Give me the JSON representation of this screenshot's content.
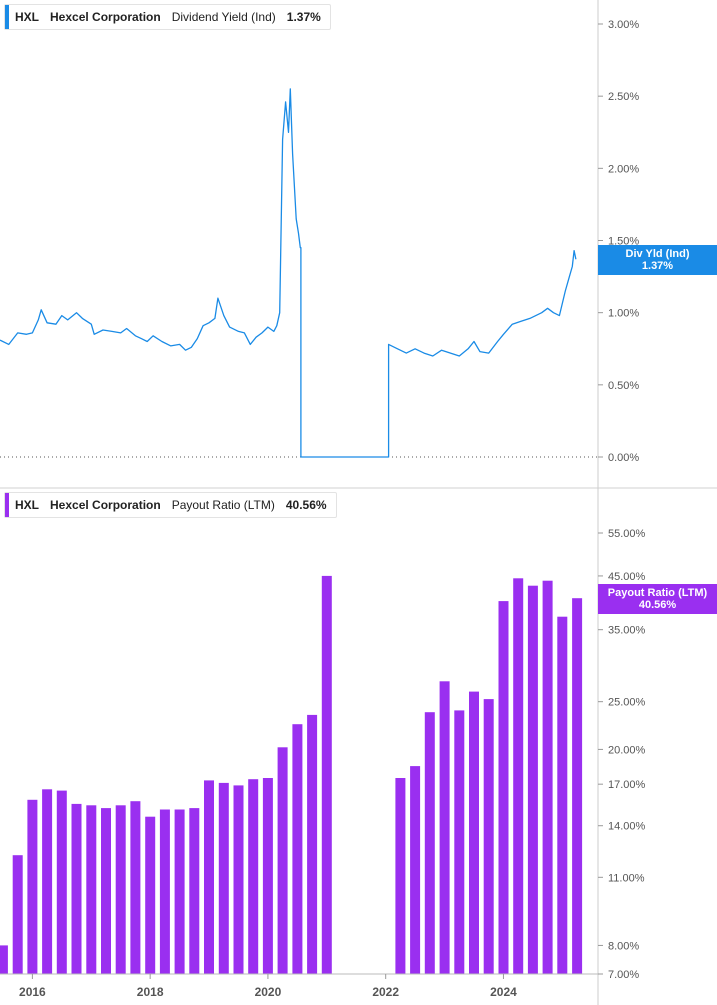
{
  "top_legend": {
    "ticker": "HXL",
    "company": "Hexcel Corporation",
    "metric": "Dividend Yield (Ind)",
    "value": "1.37%"
  },
  "bottom_legend": {
    "ticker": "HXL",
    "company": "Hexcel Corporation",
    "metric": "Payout Ratio (LTM)",
    "value": "40.56%"
  },
  "top_tag": {
    "line1": "Div Yld (Ind)",
    "line2": "1.37%"
  },
  "bottom_tag": {
    "line1": "Payout Ratio (LTM)",
    "line2": "40.56%"
  },
  "colors": {
    "yield": "#1a8be6",
    "payout": "#9a2ff0",
    "axis_text": "#555555",
    "grid": "#cccccc"
  },
  "chart_data": [
    {
      "type": "line",
      "series": [
        {
          "name": "Dividend Yield (Ind)",
          "points": [
            [
              2015.45,
              0.81
            ],
            [
              2015.6,
              0.78
            ],
            [
              2015.75,
              0.86
            ],
            [
              2015.9,
              0.85
            ],
            [
              2016.0,
              0.86
            ],
            [
              2016.1,
              0.95
            ],
            [
              2016.15,
              1.02
            ],
            [
              2016.25,
              0.93
            ],
            [
              2016.4,
              0.92
            ],
            [
              2016.5,
              0.98
            ],
            [
              2016.6,
              0.95
            ],
            [
              2016.75,
              1.0
            ],
            [
              2016.85,
              0.96
            ],
            [
              2017.0,
              0.92
            ],
            [
              2017.05,
              0.85
            ],
            [
              2017.2,
              0.88
            ],
            [
              2017.35,
              0.87
            ],
            [
              2017.5,
              0.86
            ],
            [
              2017.6,
              0.89
            ],
            [
              2017.75,
              0.84
            ],
            [
              2017.85,
              0.82
            ],
            [
              2017.95,
              0.8
            ],
            [
              2018.05,
              0.84
            ],
            [
              2018.2,
              0.8
            ],
            [
              2018.35,
              0.77
            ],
            [
              2018.5,
              0.78
            ],
            [
              2018.6,
              0.74
            ],
            [
              2018.7,
              0.76
            ],
            [
              2018.8,
              0.82
            ],
            [
              2018.9,
              0.91
            ],
            [
              2019.0,
              0.93
            ],
            [
              2019.1,
              0.96
            ],
            [
              2019.15,
              1.1
            ],
            [
              2019.25,
              0.98
            ],
            [
              2019.35,
              0.9
            ],
            [
              2019.5,
              0.87
            ],
            [
              2019.6,
              0.86
            ],
            [
              2019.7,
              0.78
            ],
            [
              2019.8,
              0.83
            ],
            [
              2019.9,
              0.86
            ],
            [
              2020.0,
              0.9
            ],
            [
              2020.1,
              0.87
            ],
            [
              2020.15,
              0.91
            ],
            [
              2020.2,
              1.0
            ],
            [
              2020.25,
              2.2
            ],
            [
              2020.3,
              2.46
            ],
            [
              2020.35,
              2.25
            ],
            [
              2020.38,
              2.55
            ],
            [
              2020.42,
              2.1
            ],
            [
              2020.48,
              1.65
            ],
            [
              2020.52,
              1.55
            ],
            [
              2020.55,
              1.45
            ],
            [
              2020.56,
              1.45
            ],
            [
              2020.56,
              0.0
            ],
            [
              2022.05,
              0.0
            ],
            [
              2022.05,
              0.78
            ],
            [
              2022.2,
              0.75
            ],
            [
              2022.35,
              0.72
            ],
            [
              2022.5,
              0.75
            ],
            [
              2022.65,
              0.72
            ],
            [
              2022.8,
              0.7
            ],
            [
              2022.95,
              0.74
            ],
            [
              2023.1,
              0.72
            ],
            [
              2023.25,
              0.7
            ],
            [
              2023.4,
              0.75
            ],
            [
              2023.5,
              0.8
            ],
            [
              2023.6,
              0.73
            ],
            [
              2023.75,
              0.72
            ],
            [
              2023.9,
              0.8
            ],
            [
              2024.0,
              0.85
            ],
            [
              2024.15,
              0.92
            ],
            [
              2024.3,
              0.94
            ],
            [
              2024.45,
              0.96
            ],
            [
              2024.55,
              0.98
            ],
            [
              2024.65,
              1.0
            ],
            [
              2024.75,
              1.03
            ],
            [
              2024.85,
              1.0
            ],
            [
              2024.95,
              0.98
            ],
            [
              2025.05,
              1.15
            ],
            [
              2025.12,
              1.25
            ],
            [
              2025.17,
              1.32
            ],
            [
              2025.2,
              1.43
            ],
            [
              2025.23,
              1.37
            ]
          ]
        }
      ],
      "xlim": [
        2015.45,
        2025.3
      ],
      "ylim": [
        0,
        3.2
      ],
      "yticks": [
        "0.00%",
        "0.50%",
        "1.00%",
        "1.50%",
        "2.00%",
        "2.50%",
        "3.00%"
      ],
      "ytick_values": [
        0,
        0.5,
        1.0,
        1.5,
        2.0,
        2.5,
        3.0
      ]
    },
    {
      "type": "bar",
      "series": [
        {
          "name": "Payout Ratio (LTM)",
          "bars": [
            [
              2015.5,
              8.0
            ],
            [
              2015.75,
              12.2
            ],
            [
              2016.0,
              15.8
            ],
            [
              2016.25,
              16.6
            ],
            [
              2016.5,
              16.5
            ],
            [
              2016.75,
              15.5
            ],
            [
              2017.0,
              15.4
            ],
            [
              2017.25,
              15.2
            ],
            [
              2017.5,
              15.4
            ],
            [
              2017.75,
              15.7
            ],
            [
              2018.0,
              14.6
            ],
            [
              2018.25,
              15.1
            ],
            [
              2018.5,
              15.1
            ],
            [
              2018.75,
              15.2
            ],
            [
              2019.0,
              17.3
            ],
            [
              2019.25,
              17.1
            ],
            [
              2019.5,
              16.9
            ],
            [
              2019.75,
              17.4
            ],
            [
              2020.0,
              17.5
            ],
            [
              2020.25,
              20.2
            ],
            [
              2020.5,
              22.5
            ],
            [
              2020.75,
              23.5
            ],
            [
              2021.0,
              45.0
            ],
            [
              2022.25,
              17.5
            ],
            [
              2022.5,
              18.5
            ],
            [
              2022.75,
              23.8
            ],
            [
              2023.0,
              27.5
            ],
            [
              2023.25,
              24.0
            ],
            [
              2023.5,
              26.2
            ],
            [
              2023.75,
              25.3
            ],
            [
              2024.0,
              40.0
            ],
            [
              2024.25,
              44.5
            ],
            [
              2024.5,
              43.0
            ],
            [
              2024.75,
              44.0
            ],
            [
              2025.0,
              37.2
            ],
            [
              2025.25,
              40.56
            ]
          ]
        }
      ],
      "xlim": [
        2015.45,
        2025.3
      ],
      "scale": "log",
      "ylim": [
        7.0,
        62.0
      ],
      "yticks": [
        "7.00%",
        "8.00%",
        "11.00%",
        "14.00%",
        "17.00%",
        "20.00%",
        "25.00%",
        "35.00%",
        "45.00%",
        "55.00%"
      ],
      "ytick_values": [
        7,
        8,
        11,
        14,
        17,
        20,
        25,
        35,
        45,
        55
      ],
      "xticks": [
        "2016",
        "2018",
        "2020",
        "2022",
        "2024"
      ],
      "xtick_values": [
        2016,
        2018,
        2020,
        2022,
        2024
      ]
    }
  ]
}
